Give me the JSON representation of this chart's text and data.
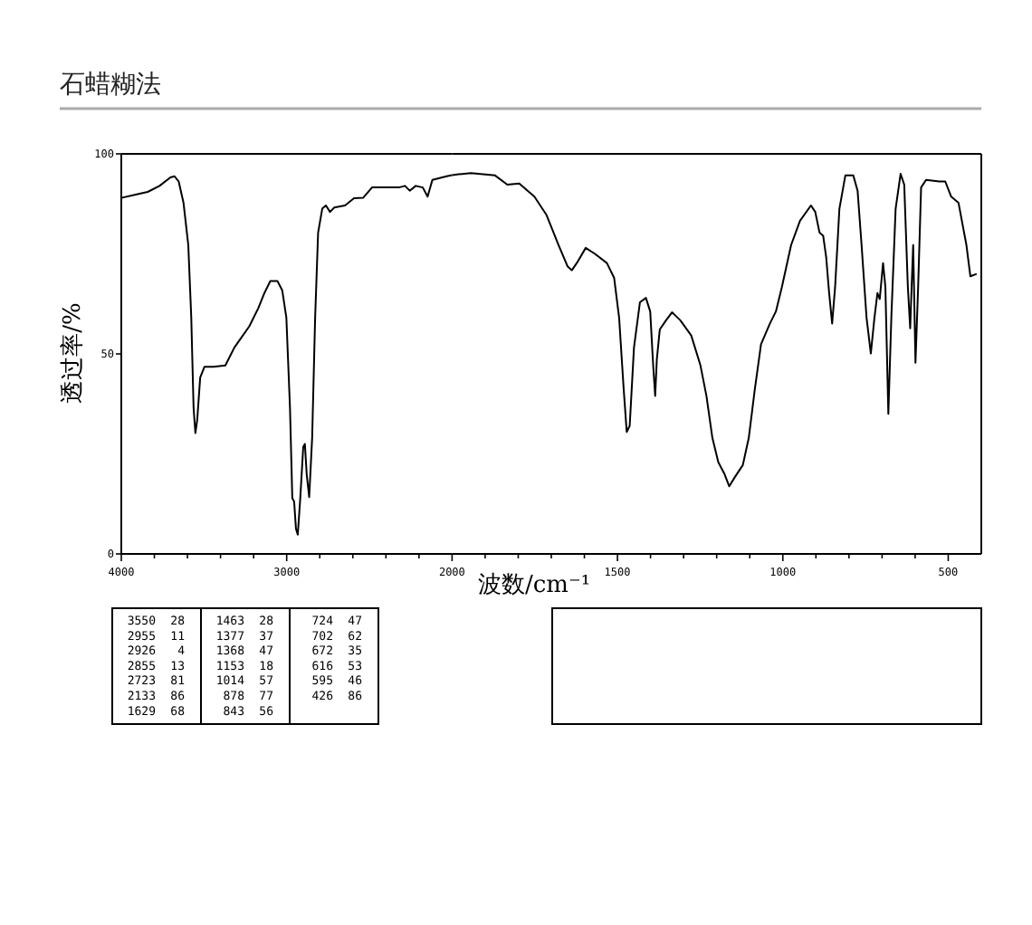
{
  "chart_data": [
    {
      "type": "line",
      "title": "石蜡糊法",
      "ylabel": "透过率/%",
      "color": "#000000",
      "x": [
        4000,
        3913,
        3840,
        3769,
        3703,
        3678,
        3653,
        3624,
        3595,
        3577,
        3563,
        3552,
        3541,
        3523,
        3497,
        3443,
        3371,
        3316,
        3226,
        3172,
        3135,
        3099,
        3056,
        3027,
        3002,
        2980,
        2966,
        2955,
        2944,
        2933,
        2918,
        2900,
        2890,
        2879,
        2864,
        2846,
        2828,
        2810,
        2785,
        2763,
        2738,
        2712,
        2647,
        2593,
        2538,
        2484,
        2321,
        2285,
        2256,
        2220,
        2177,
        2148,
        2119,
        2033,
        2000
      ],
      "values": [
        89.0,
        89.8,
        90.5,
        92.0,
        94.1,
        94.4,
        93.1,
        87.8,
        77.2,
        59.1,
        36.5,
        30.2,
        33.5,
        44.1,
        46.8,
        46.8,
        47.1,
        51.6,
        56.9,
        61.4,
        65.2,
        68.2,
        68.2,
        65.9,
        59.1,
        36.5,
        13.9,
        13.1,
        6.3,
        4.8,
        13.9,
        26.7,
        27.5,
        19.9,
        14.2,
        29.0,
        59.1,
        80.3,
        86.3,
        87.1,
        85.5,
        86.6,
        87.1,
        88.9,
        89.0,
        91.6,
        91.6,
        92.0,
        90.8,
        92.0,
        91.6,
        89.3,
        93.5,
        94.4,
        94.7
      ],
      "xlim": [
        4000,
        2000
      ],
      "xticks": [
        4000,
        {
          "value": 3800,
          "label": null
        },
        {
          "value": 3600,
          "label": null
        },
        {
          "value": 3400,
          "label": null
        },
        {
          "value": 3200,
          "label": null
        },
        3000,
        {
          "value": 2800,
          "label": null
        },
        {
          "value": 2600,
          "label": null
        },
        {
          "value": 2400,
          "label": null
        },
        {
          "value": 2200,
          "label": null
        },
        2000
      ],
      "ylim": [
        0,
        100
      ],
      "yticks": [
        0,
        50,
        100
      ],
      "annotations": [
        "3550 28",
        "2955 11",
        "2926 4",
        "2855 13",
        "2723 81",
        "2133 86",
        "1629 68",
        "1463 28",
        "1377 37",
        "1368 47",
        "1153 18",
        "1014 57",
        "878 77",
        "843 56",
        "724 47",
        "702 62",
        "672 35",
        "616 53",
        "595 46",
        "426 86"
      ]
    },
    {
      "type": "line",
      "xlabel": "波数/cm⁻¹",
      "color": "#000000",
      "tick_labels": "x",
      "x": [
        2000,
        1980,
        1943,
        1870,
        1833,
        1797,
        1751,
        1715,
        1678,
        1651,
        1638,
        1623,
        1596,
        1568,
        1532,
        1510,
        1495,
        1481,
        1472,
        1463,
        1450,
        1432,
        1414,
        1401,
        1392,
        1386,
        1381,
        1372,
        1353,
        1335,
        1310,
        1277,
        1249,
        1231,
        1213,
        1195,
        1176,
        1162,
        1145,
        1121,
        1103,
        1085,
        1066,
        1039,
        1021,
        1003,
        975,
        948,
        915,
        902,
        889,
        878,
        869,
        860,
        851,
        842,
        829,
        811,
        787,
        774,
        762,
        747,
        734,
        723,
        714,
        707,
        697,
        690,
        681,
        672,
        659,
        644,
        633,
        622,
        615,
        610,
        606,
        599,
        591,
        582,
        567,
        527,
        509,
        491,
        469,
        445,
        433,
        414
      ],
      "values": [
        94.7,
        94.9,
        95.2,
        94.6,
        92.3,
        92.6,
        89.3,
        84.8,
        77.2,
        71.9,
        70.9,
        72.7,
        76.5,
        75.0,
        72.7,
        69.0,
        59.1,
        41.0,
        30.5,
        32.0,
        51.6,
        62.9,
        64.0,
        60.6,
        47.1,
        39.5,
        48.6,
        56.1,
        58.4,
        60.4,
        58.4,
        54.6,
        47.1,
        39.5,
        29.0,
        22.9,
        19.9,
        16.9,
        19.2,
        22.2,
        29.0,
        41.0,
        52.4,
        57.6,
        60.6,
        66.7,
        77.2,
        83.3,
        87.1,
        85.5,
        80.3,
        79.5,
        74.2,
        65.2,
        57.6,
        66.7,
        86.3,
        94.6,
        94.6,
        90.8,
        77.2,
        59.1,
        50.1,
        59.1,
        65.2,
        63.7,
        72.7,
        66.7,
        35.0,
        59.1,
        86.3,
        95.0,
        92.3,
        66.7,
        56.4,
        68.2,
        77.2,
        47.8,
        66.7,
        91.6,
        93.5,
        93.1,
        93.1,
        89.3,
        87.8,
        77.2,
        69.4,
        70.0
      ],
      "xlim": [
        2000,
        400
      ],
      "xticks": [
        {
          "value": 1900,
          "label": null
        },
        {
          "value": 1800,
          "label": null
        },
        {
          "value": 1700,
          "label": null
        },
        {
          "value": 1600,
          "label": null
        },
        1500,
        {
          "value": 1400,
          "label": null
        },
        {
          "value": 1300,
          "label": null
        },
        {
          "value": 1200,
          "label": null
        },
        {
          "value": 1100,
          "label": null
        },
        1000,
        {
          "value": 900,
          "label": null
        },
        {
          "value": 800,
          "label": null
        },
        {
          "value": 700,
          "label": null
        },
        {
          "value": 600,
          "label": null
        },
        500
      ],
      "ylim": [
        0,
        100
      ]
    }
  ]
}
